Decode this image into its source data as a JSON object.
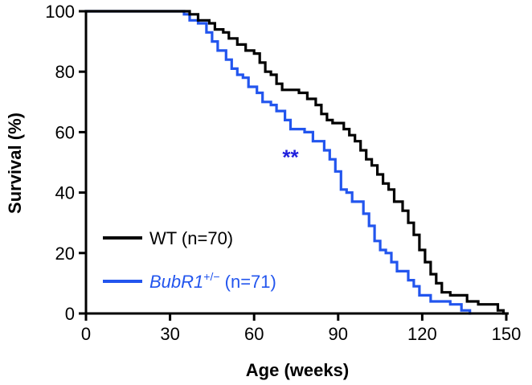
{
  "chart_data": {
    "type": "line",
    "step": true,
    "xlabel": "Age (weeks)",
    "ylabel": "Survival (%)",
    "xlim": [
      0,
      150
    ],
    "ylim": [
      0,
      100
    ],
    "xticks": [
      0,
      30,
      60,
      90,
      120,
      150
    ],
    "yticks": [
      0,
      20,
      40,
      60,
      80,
      100
    ],
    "grid": false,
    "legend_position": "bottom-left",
    "annotation": {
      "text": "**",
      "x": 73,
      "y": 52,
      "color": "#2222dd"
    },
    "series": [
      {
        "name": "WT (n=70)",
        "legend": {
          "prefix": "WT",
          "suffix": " (n=70)"
        },
        "color": "#000000",
        "points": [
          [
            0,
            100
          ],
          [
            37,
            100
          ],
          [
            37,
            99
          ],
          [
            40,
            99
          ],
          [
            40,
            97
          ],
          [
            44,
            97
          ],
          [
            44,
            96
          ],
          [
            46,
            96
          ],
          [
            46,
            94
          ],
          [
            49,
            94
          ],
          [
            49,
            93
          ],
          [
            51,
            93
          ],
          [
            51,
            91
          ],
          [
            54,
            91
          ],
          [
            54,
            89
          ],
          [
            57,
            89
          ],
          [
            57,
            87
          ],
          [
            60,
            87
          ],
          [
            60,
            86
          ],
          [
            62,
            86
          ],
          [
            62,
            83
          ],
          [
            64,
            83
          ],
          [
            64,
            80
          ],
          [
            66,
            80
          ],
          [
            66,
            79
          ],
          [
            68,
            79
          ],
          [
            68,
            76
          ],
          [
            70,
            76
          ],
          [
            70,
            74
          ],
          [
            76,
            74
          ],
          [
            76,
            73
          ],
          [
            79,
            73
          ],
          [
            79,
            71
          ],
          [
            82,
            71
          ],
          [
            82,
            69
          ],
          [
            84,
            69
          ],
          [
            84,
            66
          ],
          [
            86,
            66
          ],
          [
            86,
            64
          ],
          [
            88,
            64
          ],
          [
            88,
            63
          ],
          [
            92,
            63
          ],
          [
            92,
            61
          ],
          [
            94,
            61
          ],
          [
            94,
            59
          ],
          [
            96,
            59
          ],
          [
            96,
            57
          ],
          [
            98,
            57
          ],
          [
            98,
            54
          ],
          [
            100,
            54
          ],
          [
            100,
            51
          ],
          [
            102,
            51
          ],
          [
            102,
            49
          ],
          [
            104,
            49
          ],
          [
            104,
            46
          ],
          [
            106,
            46
          ],
          [
            106,
            43
          ],
          [
            108,
            43
          ],
          [
            108,
            41
          ],
          [
            110,
            41
          ],
          [
            110,
            37
          ],
          [
            113,
            37
          ],
          [
            113,
            34
          ],
          [
            115,
            34
          ],
          [
            115,
            30
          ],
          [
            117,
            30
          ],
          [
            117,
            26
          ],
          [
            119,
            26
          ],
          [
            119,
            21
          ],
          [
            121,
            21
          ],
          [
            121,
            17
          ],
          [
            123,
            17
          ],
          [
            123,
            13
          ],
          [
            125,
            13
          ],
          [
            125,
            10
          ],
          [
            127,
            10
          ],
          [
            127,
            7
          ],
          [
            130,
            7
          ],
          [
            130,
            6
          ],
          [
            136,
            6
          ],
          [
            136,
            4
          ],
          [
            140,
            4
          ],
          [
            140,
            3
          ],
          [
            147,
            3
          ],
          [
            147,
            1
          ],
          [
            149,
            1
          ],
          [
            149,
            0
          ]
        ]
      },
      {
        "name": "BubR1+/− (n=71)",
        "legend": {
          "prefix": "BubR1",
          "sup": "+/−",
          "suffix": " (n=71)"
        },
        "color": "#2255ee",
        "points": [
          [
            0,
            100
          ],
          [
            35,
            100
          ],
          [
            35,
            99
          ],
          [
            37,
            99
          ],
          [
            37,
            97
          ],
          [
            40,
            97
          ],
          [
            40,
            96
          ],
          [
            43,
            96
          ],
          [
            43,
            93
          ],
          [
            45,
            93
          ],
          [
            45,
            90
          ],
          [
            47,
            90
          ],
          [
            47,
            87
          ],
          [
            50,
            87
          ],
          [
            50,
            84
          ],
          [
            52,
            84
          ],
          [
            52,
            81
          ],
          [
            54,
            81
          ],
          [
            54,
            79
          ],
          [
            56,
            79
          ],
          [
            56,
            78
          ],
          [
            58,
            78
          ],
          [
            58,
            75
          ],
          [
            61,
            75
          ],
          [
            61,
            73
          ],
          [
            63,
            73
          ],
          [
            63,
            70
          ],
          [
            66,
            70
          ],
          [
            66,
            69
          ],
          [
            68,
            69
          ],
          [
            68,
            67
          ],
          [
            71,
            67
          ],
          [
            71,
            64
          ],
          [
            73,
            64
          ],
          [
            73,
            61
          ],
          [
            78,
            61
          ],
          [
            78,
            60
          ],
          [
            81,
            60
          ],
          [
            81,
            57
          ],
          [
            85,
            57
          ],
          [
            85,
            54
          ],
          [
            87,
            54
          ],
          [
            87,
            51
          ],
          [
            89,
            51
          ],
          [
            89,
            47
          ],
          [
            91,
            47
          ],
          [
            91,
            41
          ],
          [
            93,
            41
          ],
          [
            93,
            40
          ],
          [
            95,
            40
          ],
          [
            95,
            37
          ],
          [
            99,
            37
          ],
          [
            99,
            33
          ],
          [
            101,
            33
          ],
          [
            101,
            29
          ],
          [
            103,
            29
          ],
          [
            103,
            24
          ],
          [
            105,
            24
          ],
          [
            105,
            21
          ],
          [
            107,
            21
          ],
          [
            107,
            20
          ],
          [
            109,
            20
          ],
          [
            109,
            17
          ],
          [
            111,
            17
          ],
          [
            111,
            14
          ],
          [
            115,
            14
          ],
          [
            115,
            11
          ],
          [
            117,
            11
          ],
          [
            117,
            9
          ],
          [
            119,
            9
          ],
          [
            119,
            6
          ],
          [
            123,
            6
          ],
          [
            123,
            4
          ],
          [
            130,
            4
          ],
          [
            130,
            3
          ],
          [
            134,
            3
          ],
          [
            134,
            1
          ],
          [
            137,
            1
          ],
          [
            137,
            0
          ]
        ]
      }
    ]
  }
}
